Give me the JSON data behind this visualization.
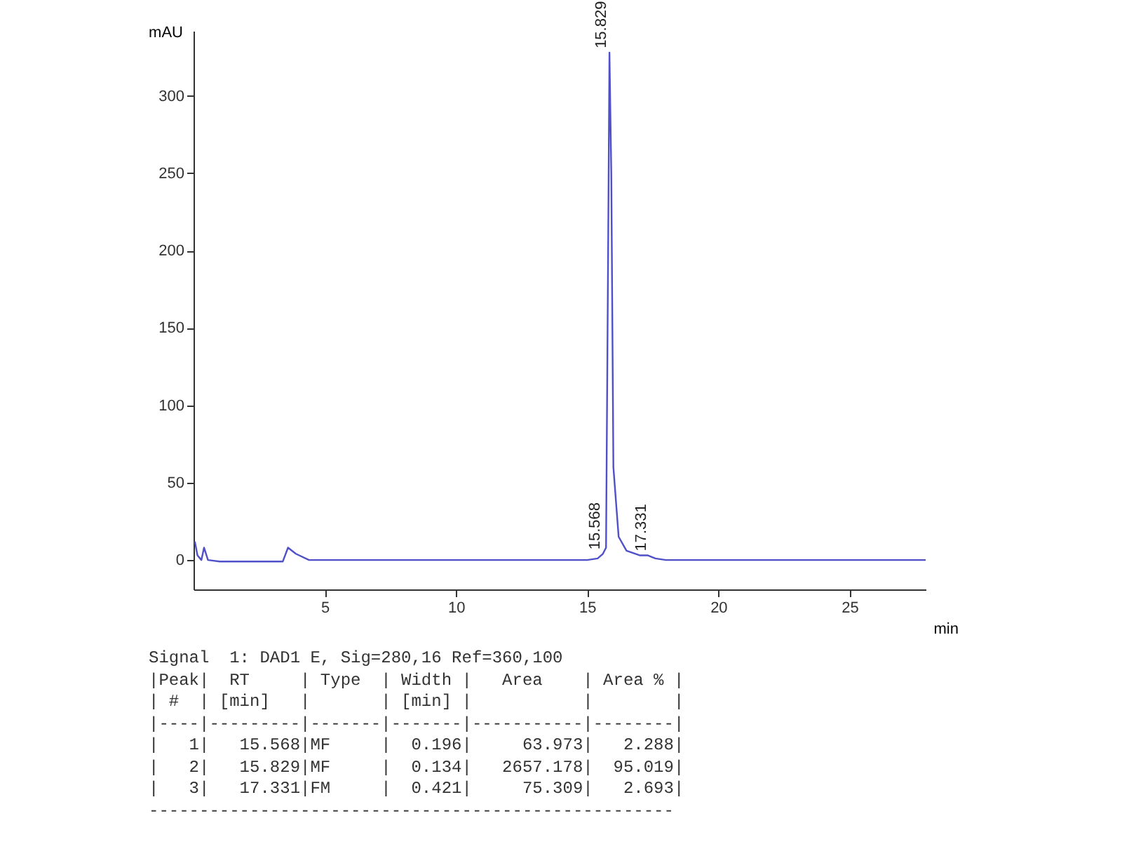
{
  "chart_data": {
    "type": "line",
    "xlabel": "min",
    "ylabel": "mAU",
    "x": [
      0.05,
      0.15,
      0.3,
      0.4,
      0.55,
      1,
      3.4,
      3.6,
      3.9,
      4.4,
      10,
      15,
      15.4,
      15.6,
      15.72,
      15.8,
      15.85,
      15.92,
      16.0,
      16.2,
      16.5,
      17,
      17.3,
      17.6,
      18,
      27.9
    ],
    "series": [
      {
        "color": "#5050c8",
        "values": [
          12,
          3,
          0,
          8,
          0,
          -1,
          -1,
          8,
          4,
          0,
          0,
          0,
          1,
          4,
          8,
          200,
          328,
          250,
          60,
          15,
          6,
          3,
          3,
          1,
          0,
          0
        ]
      }
    ],
    "xlim": [
      0,
      27.9
    ],
    "xticks": [
      5,
      10,
      15,
      20,
      25
    ],
    "ylim": [
      -19,
      342
    ],
    "yticks": [
      0,
      50,
      100,
      150,
      200,
      250,
      300
    ],
    "grid": false,
    "annotations": [
      {
        "text": "15.568",
        "x": 15.568,
        "y": 4
      },
      {
        "text": "15.829",
        "x": 15.829,
        "y": 328
      },
      {
        "text": "17.331",
        "x": 17.331,
        "y": 3
      },
      "Signal  1: DAD1 E, Sig=280,16 Ref=360,100",
      "|Peak|  RT     | Type  | Width |   Area    | Area % |",
      "| #  | [min]   |       | [min] |           |        |",
      "|----|---------|-------|-------|-----------|--------|",
      "|   1|   15.568|MF     |  0.196|     63.973|   2.288|",
      "|   2|   15.829|MF     |  0.134|   2657.178|  95.019|",
      "|   3|   17.331|FM     |  0.421|     75.309|   2.693|",
      "----------------------------------------------------"
    ]
  }
}
